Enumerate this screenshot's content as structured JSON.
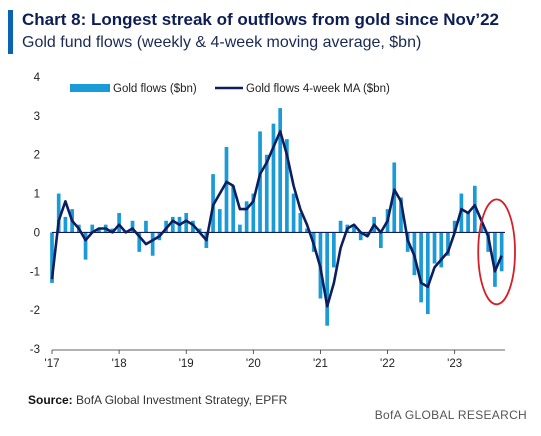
{
  "header": {
    "title": "Chart 8: Longest streak of outflows from gold since Nov’22",
    "subtitle": "Gold fund flows (weekly & 4-week moving average, $bn)",
    "accent_color": "#0a63b3"
  },
  "footer": {
    "source_label": "Source:",
    "source_text": "BofA Global Investment Strategy, EPFR",
    "brand": "BofA GLOBAL RESEARCH"
  },
  "chart_data": {
    "type": "bar",
    "title": "Chart 8: Longest streak of outflows from gold since Nov’22",
    "subtitle": "Gold fund flows (weekly & 4-week moving average, $bn)",
    "xlabel": "",
    "ylabel": "",
    "ylim": [
      -3,
      4
    ],
    "yticks": [
      4,
      3,
      2,
      1,
      0,
      -1,
      -2,
      -3
    ],
    "xticks": [
      "'17",
      "'18",
      "'19",
      "'20",
      "'21",
      "'22",
      "'23"
    ],
    "xtick_years": [
      2017,
      2018,
      2019,
      2020,
      2021,
      2022,
      2023
    ],
    "x_range": [
      2017.0,
      2023.75
    ],
    "grid": false,
    "legend_position": "top",
    "x": [
      2017.0,
      2017.1,
      2017.2,
      2017.3,
      2017.4,
      2017.5,
      2017.6,
      2017.7,
      2017.8,
      2017.9,
      2018.0,
      2018.1,
      2018.2,
      2018.3,
      2018.4,
      2018.5,
      2018.6,
      2018.7,
      2018.8,
      2018.9,
      2019.0,
      2019.1,
      2019.2,
      2019.3,
      2019.4,
      2019.5,
      2019.6,
      2019.7,
      2019.8,
      2019.9,
      2020.0,
      2020.1,
      2020.2,
      2020.3,
      2020.4,
      2020.5,
      2020.6,
      2020.7,
      2020.8,
      2020.9,
      2021.0,
      2021.1,
      2021.2,
      2021.3,
      2021.4,
      2021.5,
      2021.6,
      2021.7,
      2021.8,
      2021.9,
      2022.0,
      2022.1,
      2022.2,
      2022.3,
      2022.4,
      2022.5,
      2022.6,
      2022.7,
      2022.8,
      2022.9,
      2023.0,
      2023.1,
      2023.2,
      2023.3,
      2023.4,
      2023.5,
      2023.6,
      2023.7
    ],
    "series": [
      {
        "name": "Gold flows ($bn)",
        "type": "bar",
        "color": "#1a9ad6",
        "values": [
          -1.3,
          1.0,
          0.4,
          0.6,
          0.2,
          -0.7,
          0.2,
          0.1,
          0.2,
          0.1,
          0.5,
          0.0,
          0.3,
          -0.5,
          0.3,
          -0.6,
          -0.2,
          0.3,
          0.4,
          0.4,
          0.5,
          0.3,
          0.1,
          -0.4,
          1.5,
          0.6,
          2.2,
          1.2,
          0.2,
          0.8,
          1.0,
          2.6,
          2.0,
          2.8,
          3.2,
          2.4,
          1.0,
          0.5,
          0.1,
          -0.5,
          -1.7,
          -2.4,
          -0.9,
          0.3,
          0.2,
          0.2,
          -0.2,
          -0.1,
          0.4,
          -0.4,
          0.6,
          1.8,
          0.9,
          -0.5,
          -1.1,
          -1.8,
          -2.1,
          -0.8,
          -0.9,
          -0.6,
          0.3,
          1.0,
          0.5,
          1.2,
          0.2,
          -0.5,
          -1.4,
          -1.0
        ]
      },
      {
        "name": "Gold flows 4-week MA ($bn)",
        "type": "line",
        "color": "#0d1e5e",
        "values": [
          -1.2,
          0.3,
          0.8,
          0.3,
          0.1,
          -0.2,
          0.0,
          0.1,
          0.1,
          0.0,
          0.2,
          0.0,
          0.1,
          -0.1,
          -0.3,
          -0.2,
          -0.1,
          0.1,
          0.3,
          0.2,
          0.3,
          0.2,
          0.0,
          -0.2,
          0.7,
          1.0,
          1.3,
          1.2,
          0.6,
          0.6,
          0.8,
          1.5,
          1.8,
          2.2,
          2.6,
          2.0,
          1.2,
          0.6,
          0.2,
          -0.3,
          -0.9,
          -1.9,
          -1.3,
          -0.4,
          0.1,
          0.2,
          0.0,
          -0.1,
          0.2,
          0.0,
          0.3,
          1.1,
          0.8,
          -0.2,
          -0.6,
          -1.3,
          -1.4,
          -0.9,
          -0.7,
          -0.5,
          0.0,
          0.6,
          0.5,
          0.7,
          0.3,
          -0.1,
          -1.0,
          -0.6
        ]
      }
    ],
    "annotation": {
      "shape": "ellipse",
      "color": "#d62027",
      "around_x": [
        2023.5,
        2023.75
      ]
    }
  }
}
